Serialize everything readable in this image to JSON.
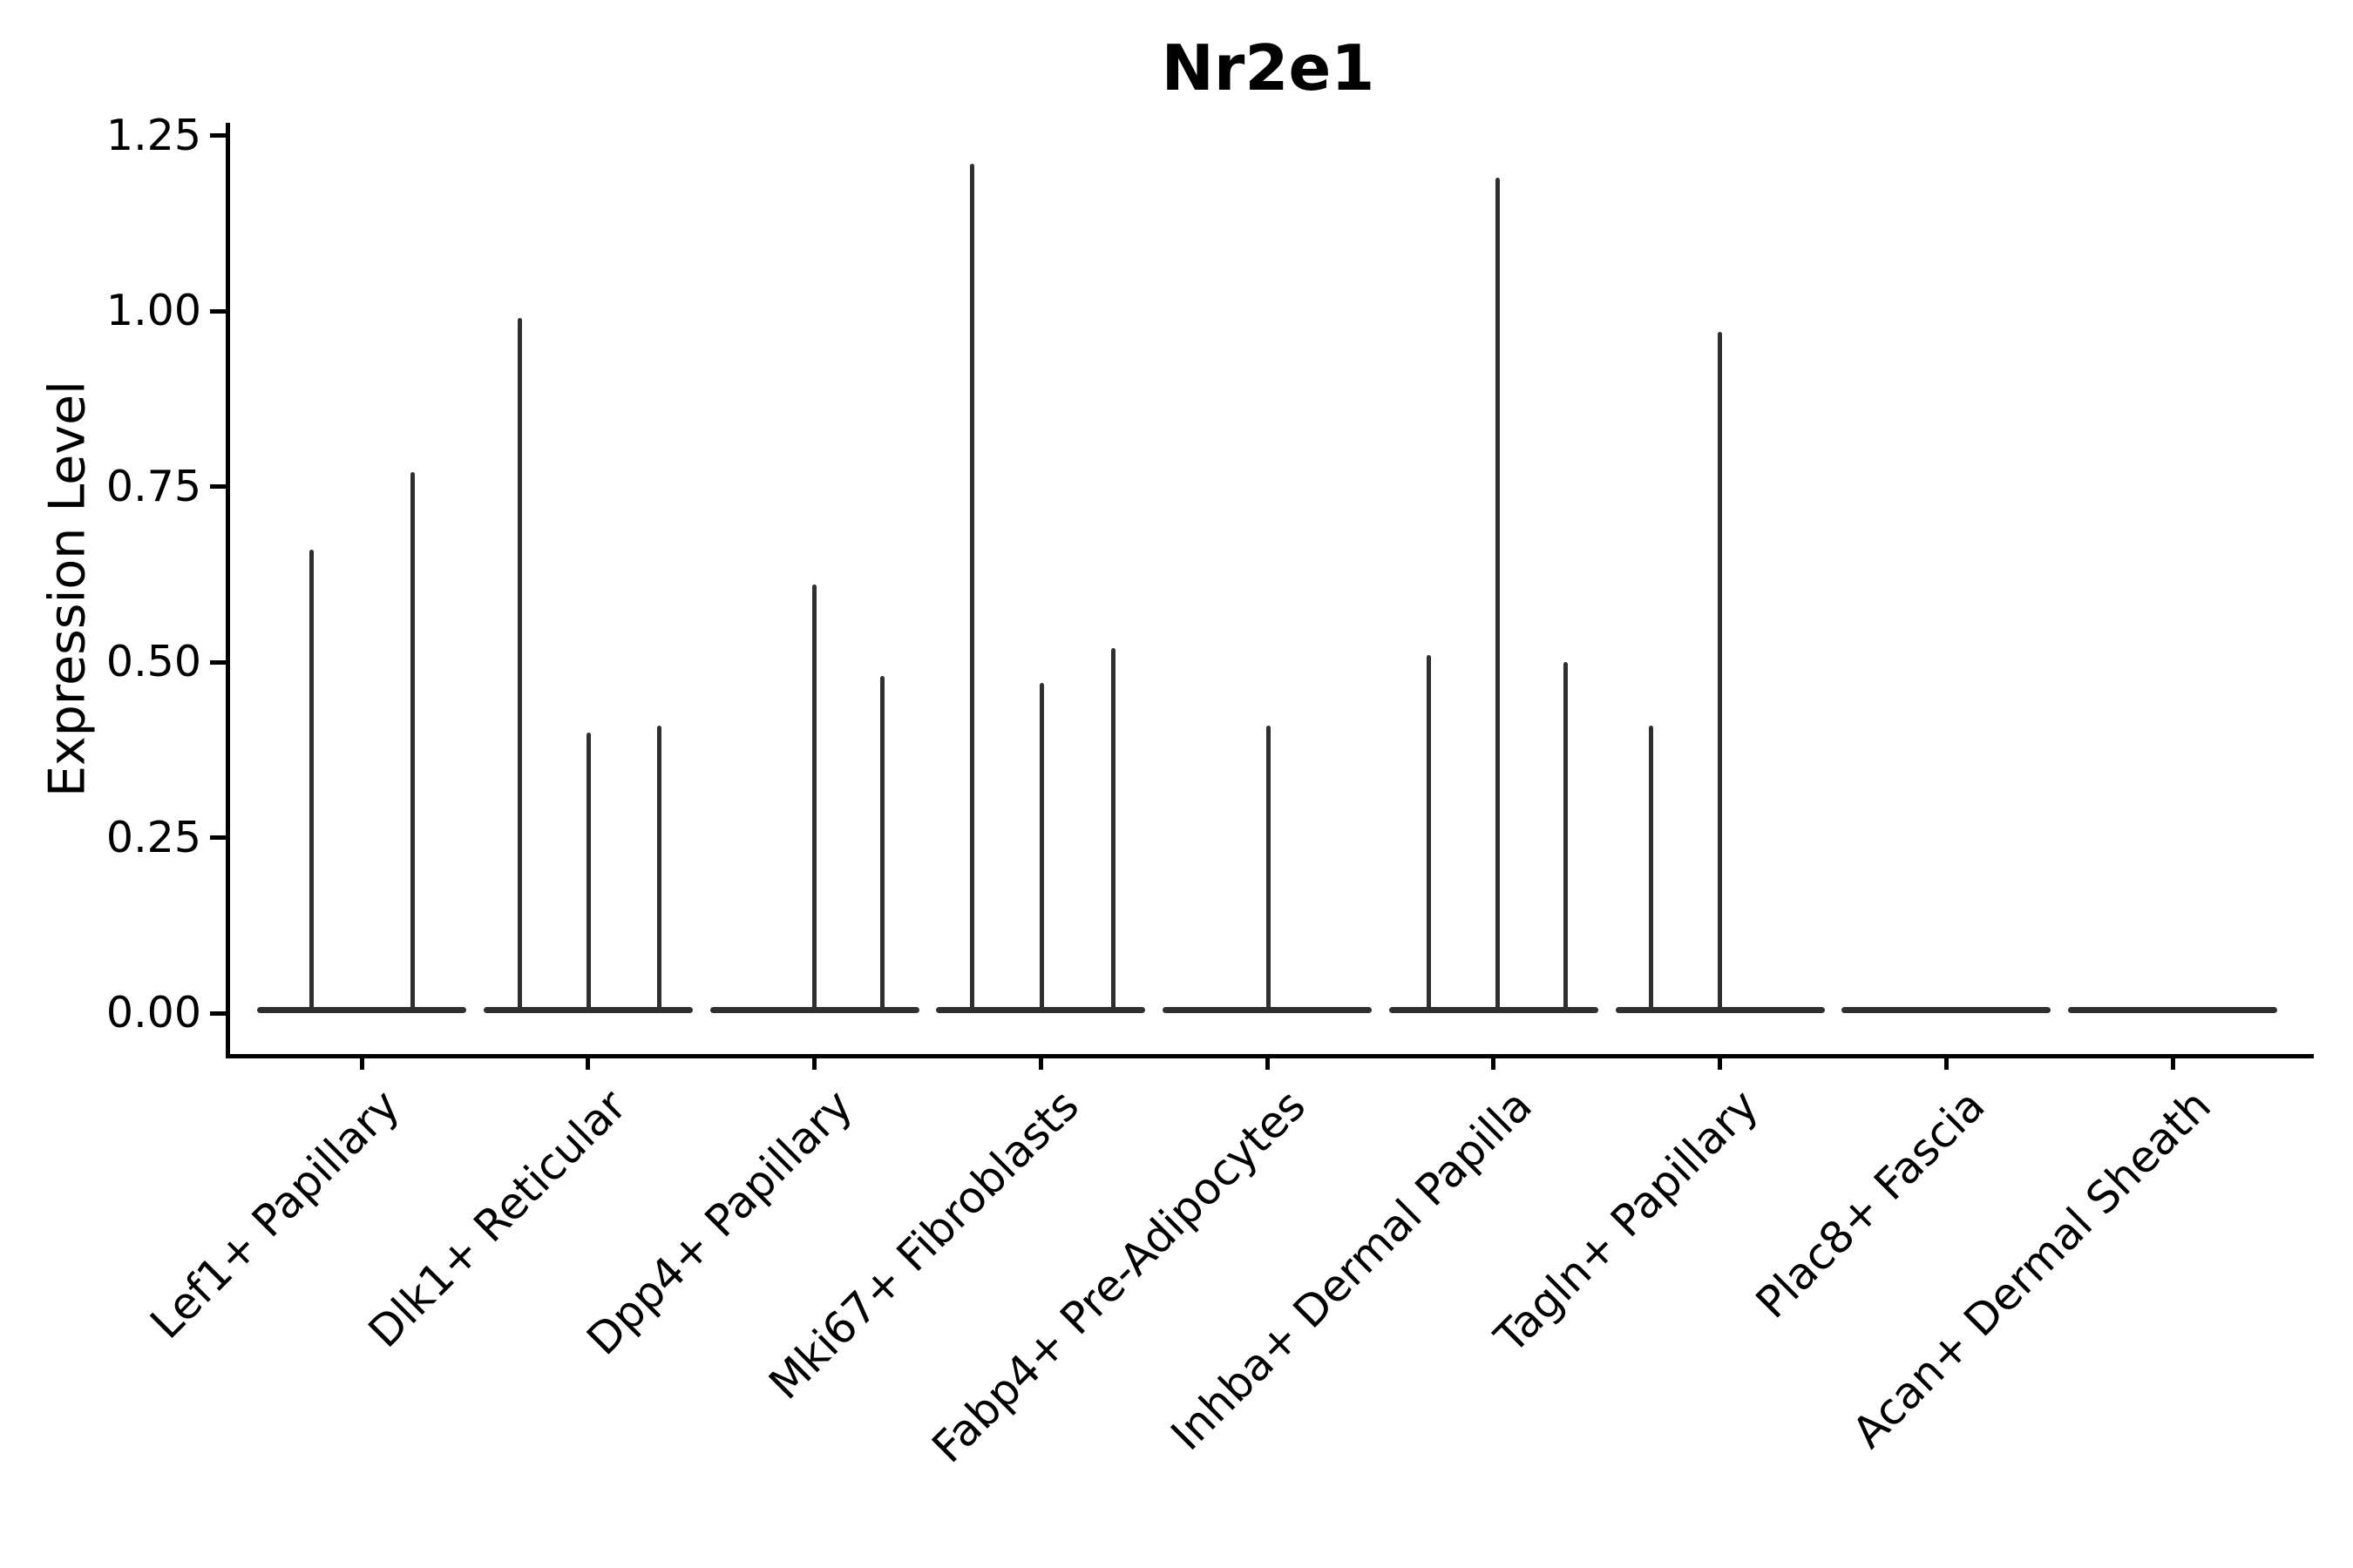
{
  "title": "Nr2e1",
  "y_axis": {
    "label": "Expression Level",
    "ticks": [
      "0.00",
      "0.25",
      "0.50",
      "0.75",
      "1.00",
      "1.25"
    ]
  },
  "chart_data": {
    "type": "violin",
    "title": "Nr2e1",
    "xlabel": "",
    "ylabel": "Expression Level",
    "ylim": [
      -0.06,
      1.27
    ],
    "y_tick_values": [
      0,
      0.25,
      0.5,
      0.75,
      1.0,
      1.25
    ],
    "y_tick_labels": [
      "0.00",
      "0.25",
      "0.50",
      "0.75",
      "1.00",
      "1.25"
    ],
    "grid": false,
    "legend": "none",
    "x_tick_rotation_deg": 45,
    "categories": [
      "Lef1+ Papillary",
      "Dlk1+ Reticular",
      "Dpp4+ Papillary",
      "Mki67+ Fibroblasts",
      "Fabp4+ Pre-Adipocytes",
      "Inhba+ Dermal Papilla",
      "Tagln+ Papillary",
      "Plac8+ Fascia",
      "Acan+ Dermal Sheath"
    ],
    "violins": [
      {
        "category": "Lef1+ Papillary",
        "baseline_value": 0,
        "spikes": [
          {
            "value": 0.66,
            "x_offset": -58
          },
          {
            "value": 0.77,
            "x_offset": 58
          }
        ]
      },
      {
        "category": "Dlk1+ Reticular",
        "baseline_value": 0,
        "spikes": [
          {
            "value": 0.99,
            "x_offset": -78
          },
          {
            "value": 0.4,
            "x_offset": 1
          },
          {
            "value": 0.41,
            "x_offset": 82
          }
        ]
      },
      {
        "category": "Dpp4+ Papillary",
        "baseline_value": 0,
        "spikes": [
          {
            "value": 0.61,
            "x_offset": 0
          },
          {
            "value": 0.48,
            "x_offset": 78
          }
        ]
      },
      {
        "category": "Mki67+ Fibroblasts",
        "baseline_value": 0,
        "spikes": [
          {
            "value": 1.21,
            "x_offset": -79
          },
          {
            "value": 0.47,
            "x_offset": 1
          },
          {
            "value": 0.52,
            "x_offset": 83
          }
        ]
      },
      {
        "category": "Fabp4+ Pre-Adipocytes",
        "baseline_value": 0,
        "spikes": [
          {
            "value": 0.41,
            "x_offset": 1
          }
        ]
      },
      {
        "category": "Inhba+ Dermal Papilla",
        "baseline_value": 0,
        "spikes": [
          {
            "value": 0.51,
            "x_offset": -74
          },
          {
            "value": 1.19,
            "x_offset": 5
          },
          {
            "value": 0.5,
            "x_offset": 83
          }
        ]
      },
      {
        "category": "Tagln+ Papillary",
        "baseline_value": 0,
        "spikes": [
          {
            "value": 0.41,
            "x_offset": -79
          },
          {
            "value": 0.97,
            "x_offset": 0
          }
        ]
      },
      {
        "category": "Plac8+ Fascia",
        "baseline_value": 0,
        "spikes": []
      },
      {
        "category": "Acan+ Dermal Sheath",
        "baseline_value": 0,
        "spikes": []
      }
    ]
  }
}
